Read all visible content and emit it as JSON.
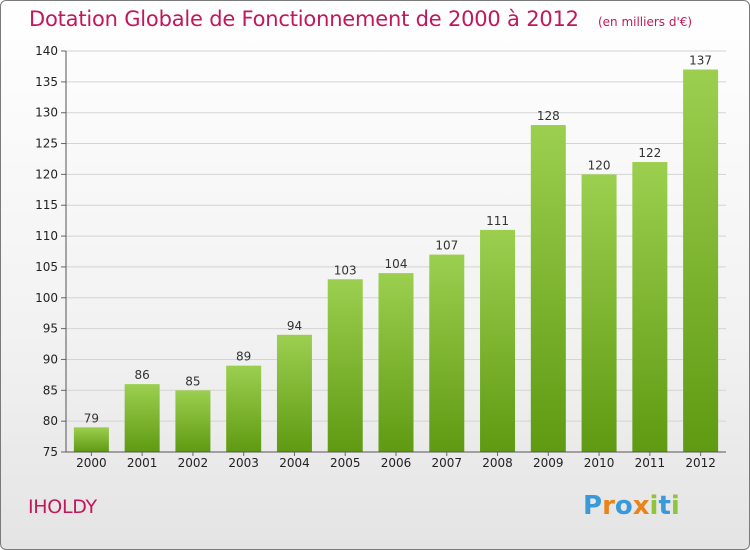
{
  "header": {
    "title": "Dotation Globale de Fonctionnement de 2000 à 2012",
    "subtitle": "(en milliers d'€)"
  },
  "commune_name": "IHOLDY",
  "logo": {
    "letters": [
      "P",
      "r",
      "o",
      "x",
      "i",
      "t",
      "i"
    ],
    "colors": [
      "#3a9ad9",
      "#e8841a",
      "#3a9ad9",
      "#e8841a",
      "#8fc53d",
      "#3a9ad9",
      "#8fc53d"
    ]
  },
  "colors": {
    "bar_top": "#9ccf4f",
    "bar_bottom": "#5f9a12",
    "accent": "#c2185b"
  },
  "chart_data": {
    "type": "bar",
    "categories": [
      "2000",
      "2001",
      "2002",
      "2003",
      "2004",
      "2005",
      "2006",
      "2007",
      "2008",
      "2009",
      "2010",
      "2011",
      "2012"
    ],
    "values": [
      79,
      86,
      85,
      89,
      94,
      103,
      104,
      107,
      111,
      128,
      120,
      122,
      137
    ],
    "ylim": [
      75,
      140
    ],
    "yticks": [
      75,
      80,
      85,
      90,
      95,
      100,
      105,
      110,
      115,
      120,
      125,
      130,
      135,
      140
    ],
    "grid": true,
    "legend": "none"
  }
}
